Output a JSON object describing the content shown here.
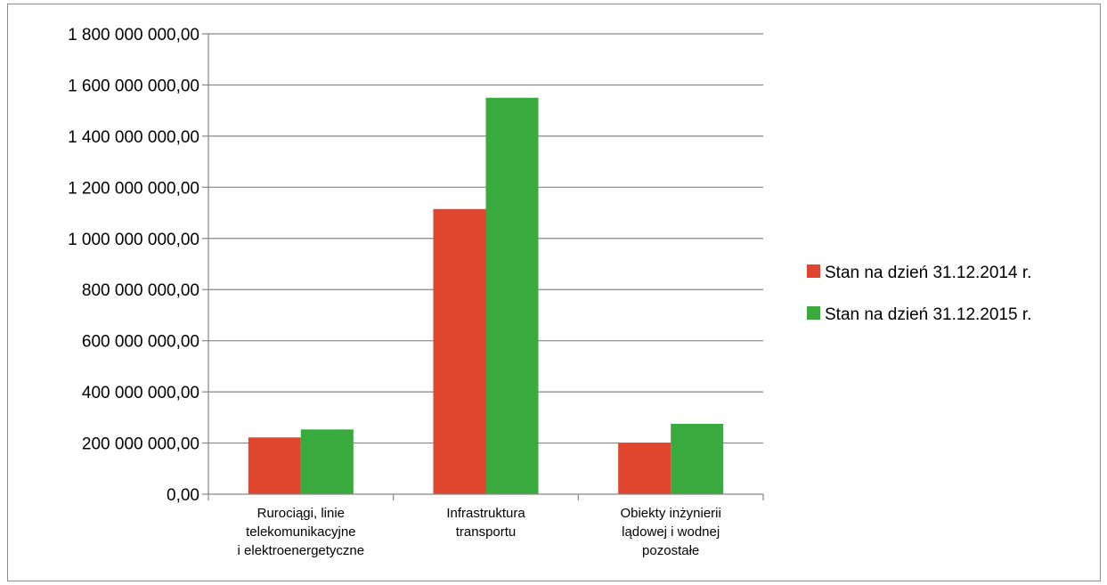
{
  "chart_data": {
    "type": "bar",
    "title": "",
    "xlabel": "",
    "ylabel": "",
    "categories": [
      [
        "Rurociągi, linie",
        "telekomunikacyjne",
        "i elektroenergetyczne"
      ],
      [
        "Infrastruktura",
        "transportu"
      ],
      [
        "Obiekty inżynierii",
        "lądowej i wodnej",
        "pozostałe"
      ]
    ],
    "series": [
      {
        "name": "Stan na dzień 31.12.2014 r.",
        "color": "#e0462d",
        "values": [
          222000000,
          1115000000,
          200000000
        ]
      },
      {
        "name": "Stan na dzień 31.12.2015 r.",
        "color": "#39ab3e",
        "values": [
          253000000,
          1550000000,
          275000000
        ]
      }
    ],
    "ylim": [
      0,
      1800000000
    ],
    "yticks": [
      0,
      200000000,
      400000000,
      600000000,
      800000000,
      1000000000,
      1200000000,
      1400000000,
      1600000000,
      1800000000
    ],
    "ytick_labels": [
      "0,00",
      "200 000 000,00",
      "400 000 000,00",
      "600 000 000,00",
      "800 000 000,00",
      "1 000 000 000,00",
      "1 200 000 000,00",
      "1 400 000 000,00",
      "1 600 000 000,00",
      "1 800 000 000,00"
    ],
    "grid": true,
    "gridline_color": "#868686",
    "legend_position": "right"
  }
}
